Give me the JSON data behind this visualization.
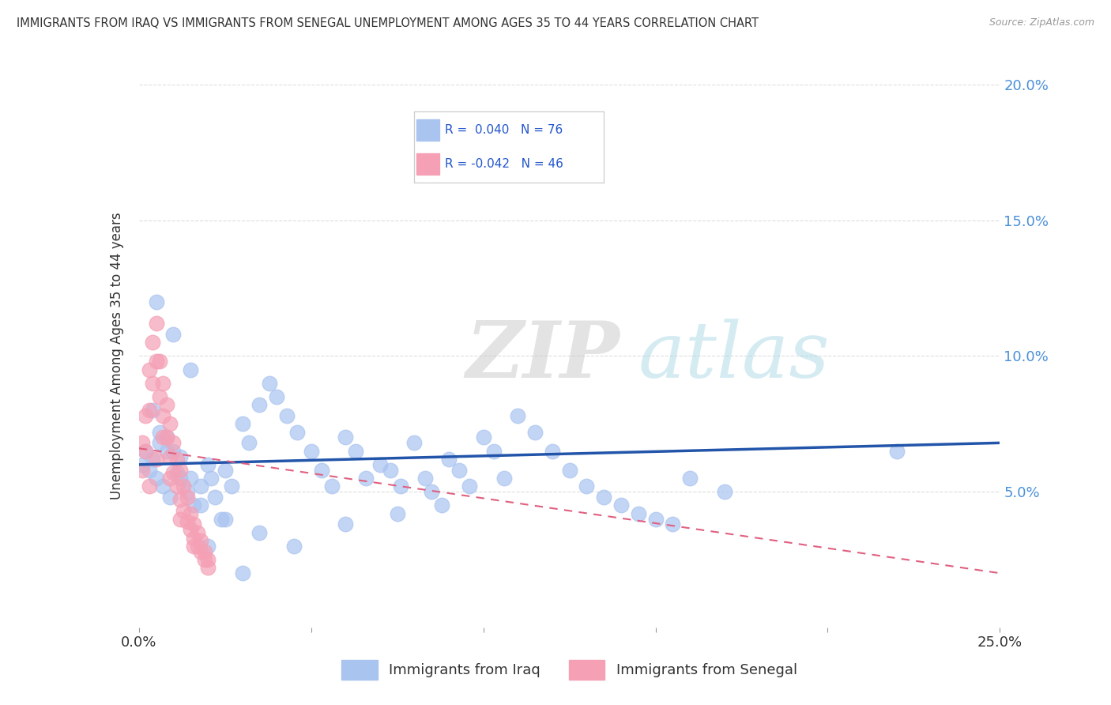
{
  "title": "IMMIGRANTS FROM IRAQ VS IMMIGRANTS FROM SENEGAL UNEMPLOYMENT AMONG AGES 35 TO 44 YEARS CORRELATION CHART",
  "source": "Source: ZipAtlas.com",
  "ylabel": "Unemployment Among Ages 35 to 44 years",
  "xlabel_iraq": "Immigrants from Iraq",
  "xlabel_senegal": "Immigrants from Senegal",
  "xlim": [
    0.0,
    0.25
  ],
  "ylim": [
    0.0,
    0.2
  ],
  "iraq_color": "#aac4f0",
  "senegal_color": "#f5a0b5",
  "iraq_line_color": "#2255aa",
  "senegal_line_color": "#e06080",
  "R_iraq": 0.04,
  "N_iraq": 76,
  "R_senegal": -0.042,
  "N_senegal": 46,
  "watermark_zip": "ZIP",
  "watermark_atlas": "atlas",
  "background_color": "#ffffff",
  "grid_color": "#dddddd",
  "iraq_x": [
    0.001,
    0.002,
    0.003,
    0.004,
    0.005,
    0.006,
    0.007,
    0.008,
    0.009,
    0.01,
    0.011,
    0.012,
    0.014,
    0.015,
    0.016,
    0.018,
    0.02,
    0.021,
    0.022,
    0.024,
    0.025,
    0.027,
    0.03,
    0.032,
    0.035,
    0.038,
    0.04,
    0.043,
    0.046,
    0.05,
    0.053,
    0.056,
    0.06,
    0.063,
    0.066,
    0.07,
    0.073,
    0.076,
    0.08,
    0.083,
    0.085,
    0.088,
    0.09,
    0.093,
    0.096,
    0.1,
    0.103,
    0.106,
    0.11,
    0.115,
    0.12,
    0.125,
    0.13,
    0.135,
    0.14,
    0.145,
    0.15,
    0.155,
    0.16,
    0.17,
    0.004,
    0.006,
    0.008,
    0.012,
    0.018,
    0.025,
    0.035,
    0.045,
    0.06,
    0.075,
    0.005,
    0.01,
    0.015,
    0.02,
    0.03,
    0.22
  ],
  "iraq_y": [
    0.06,
    0.065,
    0.058,
    0.062,
    0.055,
    0.068,
    0.052,
    0.07,
    0.048,
    0.065,
    0.057,
    0.063,
    0.05,
    0.055,
    0.045,
    0.052,
    0.06,
    0.055,
    0.048,
    0.04,
    0.058,
    0.052,
    0.075,
    0.068,
    0.082,
    0.09,
    0.085,
    0.078,
    0.072,
    0.065,
    0.058,
    0.052,
    0.07,
    0.065,
    0.055,
    0.06,
    0.058,
    0.052,
    0.068,
    0.055,
    0.05,
    0.045,
    0.062,
    0.058,
    0.052,
    0.07,
    0.065,
    0.055,
    0.078,
    0.072,
    0.065,
    0.058,
    0.052,
    0.048,
    0.045,
    0.042,
    0.04,
    0.038,
    0.055,
    0.05,
    0.08,
    0.072,
    0.065,
    0.055,
    0.045,
    0.04,
    0.035,
    0.03,
    0.038,
    0.042,
    0.12,
    0.108,
    0.095,
    0.03,
    0.02,
    0.065
  ],
  "senegal_x": [
    0.001,
    0.002,
    0.003,
    0.004,
    0.005,
    0.006,
    0.007,
    0.008,
    0.009,
    0.01,
    0.011,
    0.012,
    0.013,
    0.014,
    0.015,
    0.016,
    0.017,
    0.018,
    0.019,
    0.02,
    0.001,
    0.002,
    0.003,
    0.004,
    0.005,
    0.006,
    0.007,
    0.008,
    0.009,
    0.01,
    0.011,
    0.012,
    0.013,
    0.014,
    0.015,
    0.016,
    0.017,
    0.018,
    0.019,
    0.02,
    0.003,
    0.005,
    0.007,
    0.009,
    0.012,
    0.016
  ],
  "senegal_y": [
    0.068,
    0.078,
    0.095,
    0.105,
    0.112,
    0.098,
    0.09,
    0.082,
    0.075,
    0.068,
    0.062,
    0.058,
    0.052,
    0.048,
    0.042,
    0.038,
    0.035,
    0.032,
    0.028,
    0.025,
    0.058,
    0.065,
    0.08,
    0.09,
    0.098,
    0.085,
    0.078,
    0.07,
    0.063,
    0.057,
    0.052,
    0.047,
    0.043,
    0.039,
    0.036,
    0.033,
    0.03,
    0.028,
    0.025,
    0.022,
    0.052,
    0.062,
    0.07,
    0.055,
    0.04,
    0.03
  ]
}
